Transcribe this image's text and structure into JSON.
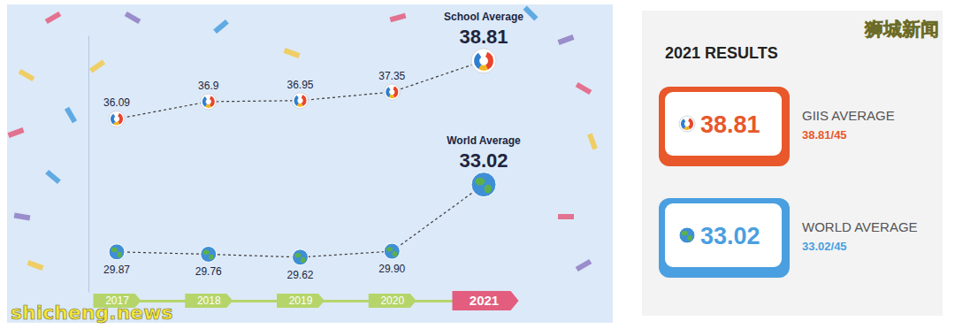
{
  "chart_data": {
    "type": "line",
    "categories": [
      "2017",
      "2018",
      "2019",
      "2020",
      "2021"
    ],
    "series": [
      {
        "name": "School Average",
        "color": "#3b3b3b",
        "marker": "logo",
        "line_style": "dotted",
        "values": [
          36.09,
          36.9,
          36.95,
          37.35,
          38.81
        ]
      },
      {
        "name": "World Average",
        "color": "#3b3b3b",
        "marker": "globe",
        "line_style": "dotted",
        "values": [
          29.87,
          29.76,
          29.62,
          29.9,
          33.02
        ],
        "value_labels": [
          "29.87",
          "29.76",
          "29.62",
          "29.90",
          "33.02"
        ]
      }
    ],
    "ylim": [
      28,
      40
    ],
    "data_labels": true,
    "tick_labels": "x"
  },
  "results_panel": {
    "title": "2021 RESULTS",
    "items": [
      {
        "label": "GIIS AVERAGE",
        "value": 38.81,
        "score": "38.81/45",
        "color": "#e8582b"
      },
      {
        "label": "WORLD AVERAGE",
        "value": 33.02,
        "score": "33.02/45",
        "color": "#4a9fe0"
      }
    ]
  },
  "watermarks": [
    "狮城新闻",
    "shicheng.news"
  ]
}
